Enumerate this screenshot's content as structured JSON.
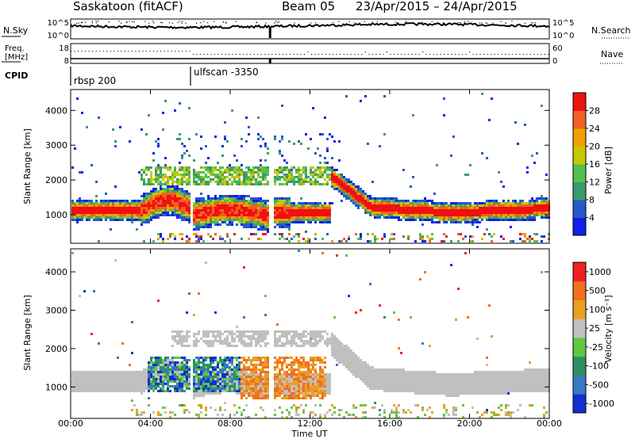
{
  "header": {
    "station": "Saskatoon (fitACF)",
    "beam": "Beam 05",
    "dates": "23/Apr/2015 – 24/Apr/2015"
  },
  "noise_panel": {
    "left_label": "N.Sky",
    "right_label": "N.Search",
    "left_ticks": [
      "10^5",
      "10^0"
    ],
    "right_ticks": [
      "10^5",
      "10^0"
    ]
  },
  "freq_panel": {
    "left_label_1": "Freq.",
    "left_label_2": "[MHz]",
    "right_label": "Nave",
    "left_ticks": [
      "18",
      "8"
    ],
    "right_ticks": [
      "60",
      "0"
    ]
  },
  "cpid": {
    "label": "CPID",
    "programs": [
      {
        "name": "rbsp 200",
        "start_hour": 0
      },
      {
        "name": "ulfscan -3350",
        "start_hour": 6
      }
    ]
  },
  "chart_data": [
    {
      "type": "heatmap",
      "name": "power",
      "ylabel": "Slant Range [km]",
      "ylim": [
        180,
        4600
      ],
      "yticks": [
        "1000",
        "2000",
        "3000",
        "4000"
      ],
      "colorbar_label": "Power [dB]",
      "colorbar_ticks": [
        "4",
        "8",
        "12",
        "16",
        "20",
        "24",
        "28"
      ],
      "colors": [
        "#1020e8",
        "#2858c8",
        "#3c9a6a",
        "#50c050",
        "#c8c800",
        "#f0a000",
        "#f06020",
        "#f01010"
      ]
    },
    {
      "type": "heatmap",
      "name": "velocity",
      "ylabel": "Slant Range [km]",
      "ylim": [
        180,
        4600
      ],
      "yticks": [
        "1000",
        "2000",
        "3000",
        "4000"
      ],
      "colorbar_label": "Velocity [m s⁻¹]",
      "colorbar_ticks": [
        "1000",
        "500",
        "100",
        "25",
        "-25",
        "-100",
        "-500",
        "-1000"
      ],
      "colors": [
        "#1030d0",
        "#3878c8",
        "#2e9060",
        "#60c840",
        "#c0c0c0",
        "#e8a020",
        "#f07020",
        "#f02020"
      ]
    }
  ],
  "time_axis": {
    "label": "Time UT",
    "ticks": [
      "00:00",
      "04:00",
      "08:00",
      "12:00",
      "16:00",
      "20:00",
      "00:00"
    ]
  }
}
